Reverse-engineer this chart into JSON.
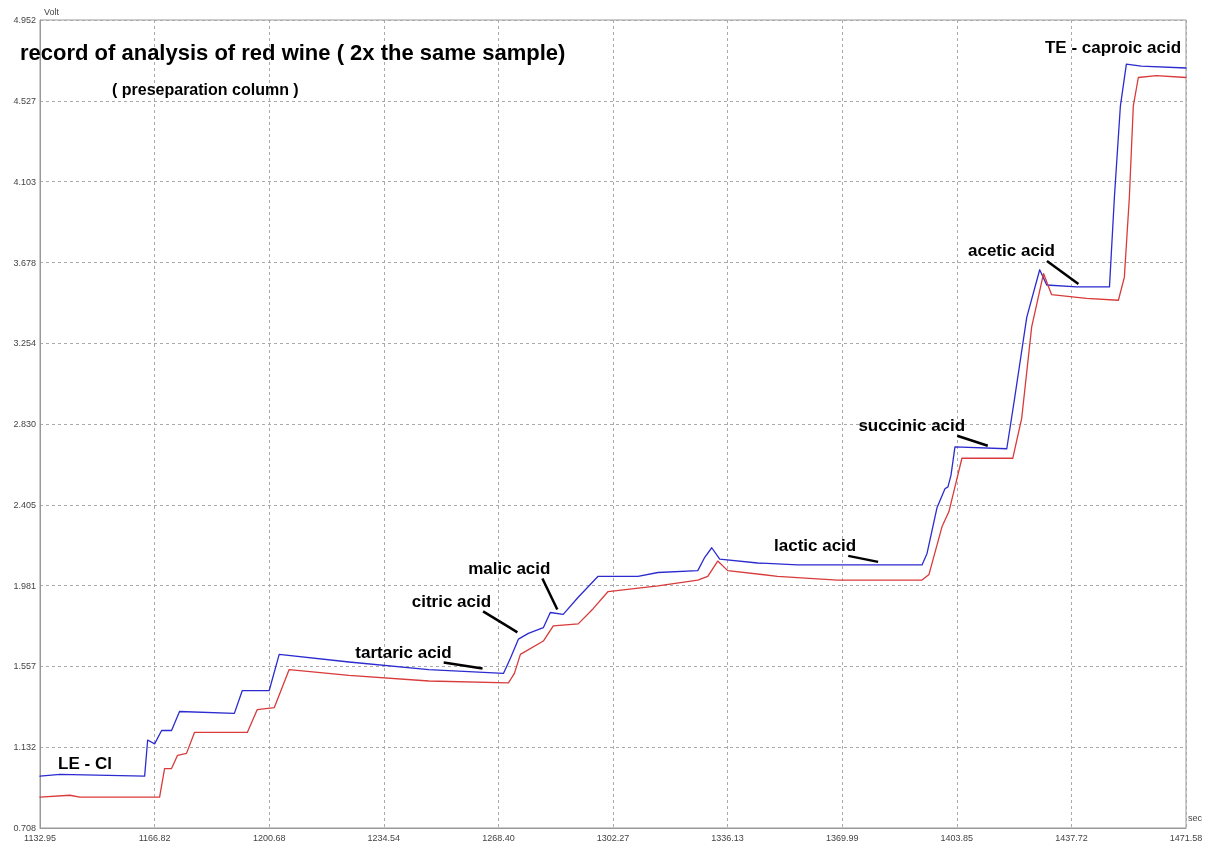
{
  "chart_data": {
    "type": "line",
    "title": "record of analysis of red wine ( 2x the same sample)",
    "subtitle": "( preseparation column )",
    "xlabel": "sec",
    "ylabel": "Volt",
    "xlim": [
      1132.95,
      1471.58
    ],
    "xticks": [
      1132.95,
      1166.82,
      1200.68,
      1234.54,
      {
        "value": 1268.4,
        "label": "1268.40"
      },
      1302.27,
      1336.13,
      1369.99,
      1403.85,
      1437.72,
      1471.58
    ],
    "ylim": [
      0.708,
      4.952
    ],
    "yticks": [
      0.708,
      1.132,
      1.557,
      1.981,
      2.405,
      {
        "value": 2.83,
        "label": "2.830"
      },
      3.254,
      3.678,
      4.103,
      4.527,
      4.952
    ],
    "grid": true,
    "marker": "none",
    "line_style": "solid",
    "series": [
      {
        "color": "#2b2bd0",
        "x": [
          1132.95,
          1138.84,
          1163.87,
          1164.76,
          1166.82,
          1168.88,
          1171.82,
          1174.18,
          1190.38,
          1192.73,
          1200.68,
          1203.63,
          1224.25,
          1247.81,
          1269.89,
          1271.95,
          1274.31,
          1277.26,
          1281.68,
          1283.73,
          1287.56,
          1291.98,
          1297.87,
          1309.65,
          1315.54,
          1327.32,
          1329.38,
          1331.44,
          1333.8,
          1344.99,
          1356.77,
          1374.44,
          1393.58,
          1395.06,
          1398.0,
          1400.36,
          1401.24,
          1402.13,
          1403.31,
          1418.62,
          1420.98,
          1424.52,
          1428.35,
          1430.42,
          1439.25,
          1448.97,
          1450.42,
          1452.19,
          1453.96,
          1458.37,
          1471.58
        ],
        "values": [
          0.98,
          0.99,
          0.98,
          1.17,
          1.15,
          1.22,
          1.22,
          1.32,
          1.31,
          1.43,
          1.43,
          1.62,
          1.58,
          1.54,
          1.52,
          1.6,
          1.7,
          1.73,
          1.76,
          1.84,
          1.83,
          1.92,
          2.03,
          2.03,
          2.05,
          2.06,
          2.13,
          2.18,
          2.12,
          2.1,
          2.09,
          2.09,
          2.09,
          2.15,
          2.39,
          2.49,
          2.5,
          2.56,
          2.71,
          2.7,
          2.97,
          3.39,
          3.64,
          3.56,
          3.55,
          3.55,
          4.02,
          4.5,
          4.72,
          4.71,
          4.7
        ]
      },
      {
        "color": "#d93a3a",
        "x": [
          1132.95,
          1141.79,
          1144.73,
          1168.29,
          1169.76,
          1171.82,
          1173.59,
          1176.24,
          1178.6,
          1194.21,
          1197.15,
          1202.16,
          1206.58,
          1224.25,
          1247.81,
          1271.37,
          1273.13,
          1274.9,
          1281.68,
          1284.62,
          1291.98,
          1296.4,
          1300.82,
          1315.54,
          1327.32,
          1330.27,
          1333.21,
          1336.16,
          1350.88,
          1368.55,
          1393.58,
          1395.64,
          1399.47,
          1401.53,
          1403.31,
          1405.37,
          1420.39,
          1423.03,
          1425.98,
          1429.48,
          1431.84,
          1442.17,
          1451.6,
          1453.36,
          1454.84,
          1456.01,
          1457.49,
          1462.79,
          1471.58
        ],
        "values": [
          0.87,
          0.88,
          0.87,
          0.87,
          1.02,
          1.02,
          1.09,
          1.1,
          1.21,
          1.21,
          1.33,
          1.34,
          1.54,
          1.51,
          1.48,
          1.47,
          1.52,
          1.62,
          1.69,
          1.77,
          1.78,
          1.86,
          1.95,
          1.98,
          2.01,
          2.03,
          2.11,
          2.06,
          2.03,
          2.01,
          2.01,
          2.04,
          2.29,
          2.37,
          2.5,
          2.65,
          2.65,
          2.86,
          3.34,
          3.62,
          3.51,
          3.49,
          3.48,
          3.6,
          4.02,
          4.5,
          4.65,
          4.66,
          4.65
        ]
      }
    ],
    "annotations": [
      {
        "text": "tartaric acid",
        "x": 1264.0,
        "y": 1.53
      },
      {
        "text": "citric acid",
        "x": 1274.31,
        "y": 1.72
      },
      {
        "text": "malic acid",
        "x": 1286.1,
        "y": 1.84
      },
      {
        "text": "lactic acid",
        "x": 1380.9,
        "y": 2.09
      },
      {
        "text": "succinic acid",
        "x": 1413.3,
        "y": 2.7
      },
      {
        "text": "acetic acid",
        "x": 1440.1,
        "y": 3.55
      },
      "LE - Cl",
      "TE - caproic acid"
    ]
  }
}
